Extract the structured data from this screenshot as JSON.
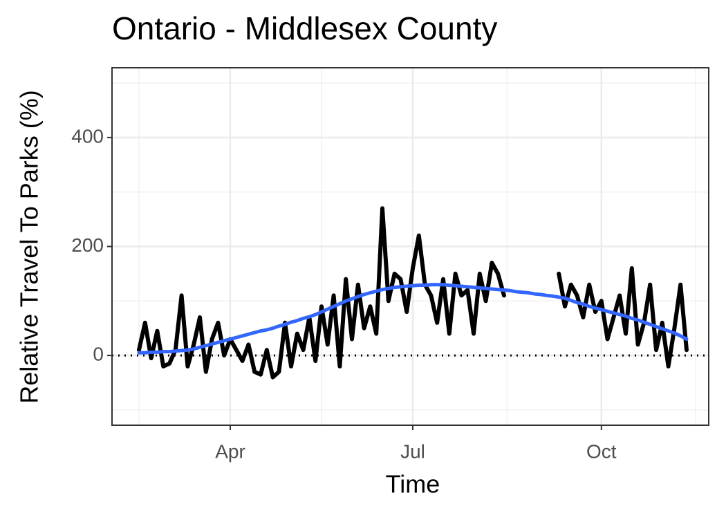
{
  "chart_data": {
    "type": "line",
    "title": "Ontario - Middlesex County",
    "x_label": "Time",
    "y_label": "Relative Travel To Parks (%)",
    "categories": [
      null,
      null,
      null,
      null,
      null,
      null,
      null,
      null,
      null,
      null,
      null,
      null,
      null,
      null,
      null,
      "Apr",
      null,
      null,
      null,
      null,
      null,
      null,
      null,
      null,
      null,
      null,
      null,
      null,
      null,
      null,
      null,
      null,
      null,
      null,
      null,
      null,
      null,
      null,
      null,
      null,
      null,
      null,
      null,
      null,
      null,
      "Jul",
      null,
      null,
      null,
      null,
      null,
      null,
      null,
      null,
      null,
      null,
      null,
      null,
      null,
      null,
      null,
      null,
      null,
      null,
      null,
      null,
      null,
      null,
      null,
      null,
      null,
      null,
      null,
      null,
      null,
      null,
      "Oct",
      null,
      null,
      null,
      null,
      null,
      null,
      null,
      null,
      null,
      null,
      null,
      null,
      null,
      null
    ],
    "series": [
      {
        "color": "#000000",
        "values": [
          10,
          60,
          -5,
          45,
          -20,
          -15,
          10,
          110,
          -20,
          20,
          70,
          -30,
          30,
          60,
          0,
          30,
          10,
          -10,
          20,
          -30,
          -35,
          10,
          -40,
          -30,
          60,
          -20,
          40,
          10,
          70,
          -10,
          90,
          20,
          110,
          -20,
          140,
          30,
          130,
          50,
          90,
          40,
          270,
          100,
          150,
          140,
          80,
          160,
          220,
          130,
          110,
          60,
          140,
          40,
          150,
          110,
          120,
          40,
          150,
          100,
          170,
          150,
          110,
          null,
          null,
          null,
          null,
          null,
          null,
          null,
          null,
          150,
          90,
          130,
          110,
          70,
          130,
          80,
          100,
          30,
          70,
          110,
          40,
          160,
          20,
          60,
          130,
          10,
          60,
          -20,
          50,
          130,
          10
        ]
      },
      {
        "color": "#3366ff",
        "values": [
          5,
          5,
          6,
          6,
          7,
          7,
          8,
          9,
          10,
          12,
          15,
          18,
          21,
          24,
          27,
          30,
          33,
          36,
          39,
          42,
          45,
          47,
          50,
          54,
          57,
          61,
          64,
          68,
          71,
          75,
          80,
          85,
          90,
          95,
          100,
          104,
          108,
          112,
          115,
          118,
          121,
          123,
          125,
          126,
          127,
          128,
          129,
          129,
          130,
          130,
          130,
          129,
          128,
          127,
          126,
          125,
          124,
          123,
          122,
          121,
          120,
          119,
          117,
          116,
          115,
          113,
          112,
          110,
          109,
          107,
          105,
          101,
          97,
          94,
          90,
          87,
          84,
          81,
          78,
          75,
          72,
          68,
          65,
          61,
          57,
          53,
          49,
          45,
          41,
          36,
          30
        ]
      }
    ],
    "ylim": [
      -128,
      528
    ],
    "yticks": [
      0,
      200,
      400
    ],
    "yminor": [
      -100,
      100,
      300,
      500
    ],
    "hline": 0,
    "grid": true
  }
}
